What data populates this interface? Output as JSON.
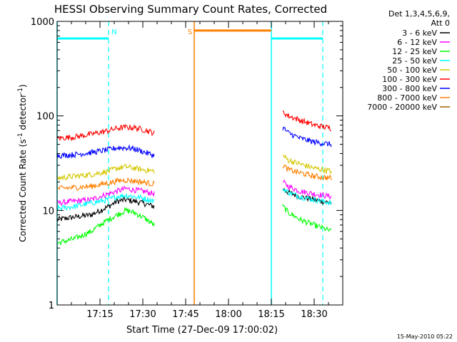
{
  "chart_data": {
    "type": "line",
    "title": "HESSI Observing Summary Count Rates, Corrected",
    "xlabel": "Start Time (27-Dec-09 17:00:02)",
    "ylabel": "Corrected Count Rate (s",
    "ylabel_sup1": "-1",
    "ylabel_mid": " detector",
    "ylabel_sup2": "-1",
    "ylabel_end": ")",
    "y_scale": "log",
    "ylim": [
      1,
      1000
    ],
    "xlim_minutes": [
      0,
      100
    ],
    "x_tick_labels": [
      {
        "label": "17:15",
        "minute": 15
      },
      {
        "label": "17:30",
        "minute": 30
      },
      {
        "label": "17:45",
        "minute": 45
      },
      {
        "label": "18:00",
        "minute": 60
      },
      {
        "label": "18:15",
        "minute": 75
      },
      {
        "label": "18:30",
        "minute": 90
      }
    ],
    "y_tick_labels": [
      {
        "label": "1",
        "value": 1
      },
      {
        "label": "10",
        "value": 10
      },
      {
        "label": "100",
        "value": 100
      },
      {
        "label": "1000",
        "value": 1000
      }
    ],
    "legend_header": [
      "Det 1,3,4,5,6,9,",
      "Att 0"
    ],
    "legend_position": "top-right",
    "series": [
      {
        "name": "3 - 6 keV",
        "color": "#000000",
        "segments": [
          {
            "x": [
              0,
              6,
              12,
              18,
              21,
              24,
              27,
              30,
              34
            ],
            "y": [
              8,
              8.5,
              9,
              11,
              12.5,
              13,
              12.5,
              12,
              11
            ]
          },
          {
            "x": [
              79,
              81,
              85,
              90,
              96
            ],
            "y": [
              17,
              15.5,
              14,
              13,
              12
            ]
          }
        ]
      },
      {
        "name": "6 - 12 keV",
        "color": "#ff00ff",
        "segments": [
          {
            "x": [
              0,
              6,
              12,
              18,
              21,
              24,
              27,
              30,
              34
            ],
            "y": [
              12,
              12.5,
              13,
              15,
              16,
              17,
              16.5,
              16,
              15
            ]
          },
          {
            "x": [
              79,
              81,
              85,
              90,
              96
            ],
            "y": [
              20,
              18,
              16,
              15,
              14
            ]
          }
        ]
      },
      {
        "name": "12 - 25 keV",
        "color": "#00ff00",
        "segments": [
          {
            "x": [
              0,
              6,
              12,
              18,
              21,
              24,
              27,
              30,
              34
            ],
            "y": [
              4.5,
              5,
              6,
              8,
              9,
              10,
              9.5,
              8.5,
              7
            ]
          },
          {
            "x": [
              79,
              81,
              85,
              90,
              96
            ],
            "y": [
              11,
              9.5,
              8,
              7,
              6
            ]
          }
        ]
      },
      {
        "name": "25 - 50 keV",
        "color": "#00ffff",
        "segments": [
          {
            "x": [
              0,
              6,
              12,
              18,
              21,
              24,
              27,
              30,
              34
            ],
            "y": [
              10.5,
              11,
              12,
              13,
              14,
              14.5,
              14,
              13.5,
              12.5
            ]
          },
          {
            "x": [
              79,
              81,
              85,
              90,
              96
            ],
            "y": [
              17,
              15.5,
              14,
              13,
              12
            ]
          }
        ]
      },
      {
        "name": "50 - 100 keV",
        "color": "#d4c800",
        "segments": [
          {
            "x": [
              0,
              6,
              12,
              18,
              21,
              24,
              27,
              30,
              34
            ],
            "y": [
              22,
              23,
              24,
              26,
              28,
              29,
              28,
              27,
              26
            ]
          },
          {
            "x": [
              79,
              81,
              85,
              90,
              96
            ],
            "y": [
              38,
              34,
              31,
              28,
              26
            ]
          }
        ]
      },
      {
        "name": "100 - 300 keV",
        "color": "#ff0000",
        "segments": [
          {
            "x": [
              0,
              6,
              12,
              18,
              21,
              24,
              27,
              30,
              34
            ],
            "y": [
              58,
              60,
              64,
              70,
              74,
              76,
              75,
              72,
              66
            ]
          },
          {
            "x": [
              79,
              81,
              85,
              90,
              96
            ],
            "y": [
              110,
              100,
              90,
              80,
              74
            ]
          }
        ]
      },
      {
        "name": "300 - 800 keV",
        "color": "#0000ff",
        "segments": [
          {
            "x": [
              0,
              6,
              12,
              18,
              21,
              24,
              27,
              30,
              34
            ],
            "y": [
              38,
              39,
              41,
              44,
              46,
              46,
              45,
              42,
              38
            ]
          },
          {
            "x": [
              79,
              81,
              85,
              90,
              96
            ],
            "y": [
              75,
              66,
              58,
              53,
              50
            ]
          }
        ]
      },
      {
        "name": "800 - 7000 keV",
        "color": "#ff7f00",
        "segments": [
          {
            "x": [
              0,
              6,
              12,
              18,
              21,
              24,
              27,
              30,
              34
            ],
            "y": [
              17,
              17.5,
              18,
              19.5,
              20.5,
              21,
              20.5,
              20,
              19
            ]
          },
          {
            "x": [
              79,
              81,
              85,
              90,
              96
            ],
            "y": [
              30,
              27,
              25,
              23,
              22
            ]
          }
        ]
      },
      {
        "name": "7000 - 20000 keV",
        "color": "#a06400",
        "segments": []
      }
    ],
    "annotations": {
      "saa_level": 800,
      "night_level": 660,
      "cyan_solid_x": [
        0,
        75
      ],
      "cyan_dashed_x": [
        18,
        93
      ],
      "orange_solid_x": [
        48
      ],
      "night_bars": [
        {
          "x": [
            0,
            18
          ]
        },
        {
          "x": [
            75,
            93
          ]
        }
      ],
      "saa_bar": {
        "x": [
          48,
          75
        ]
      },
      "labels": [
        {
          "text": "N",
          "minute": 20,
          "color": "#00ffff"
        },
        {
          "text": "S",
          "minute": 46.5,
          "color": "#ff7f00"
        }
      ]
    }
  },
  "footer_date": "15-May-2010 05:22"
}
